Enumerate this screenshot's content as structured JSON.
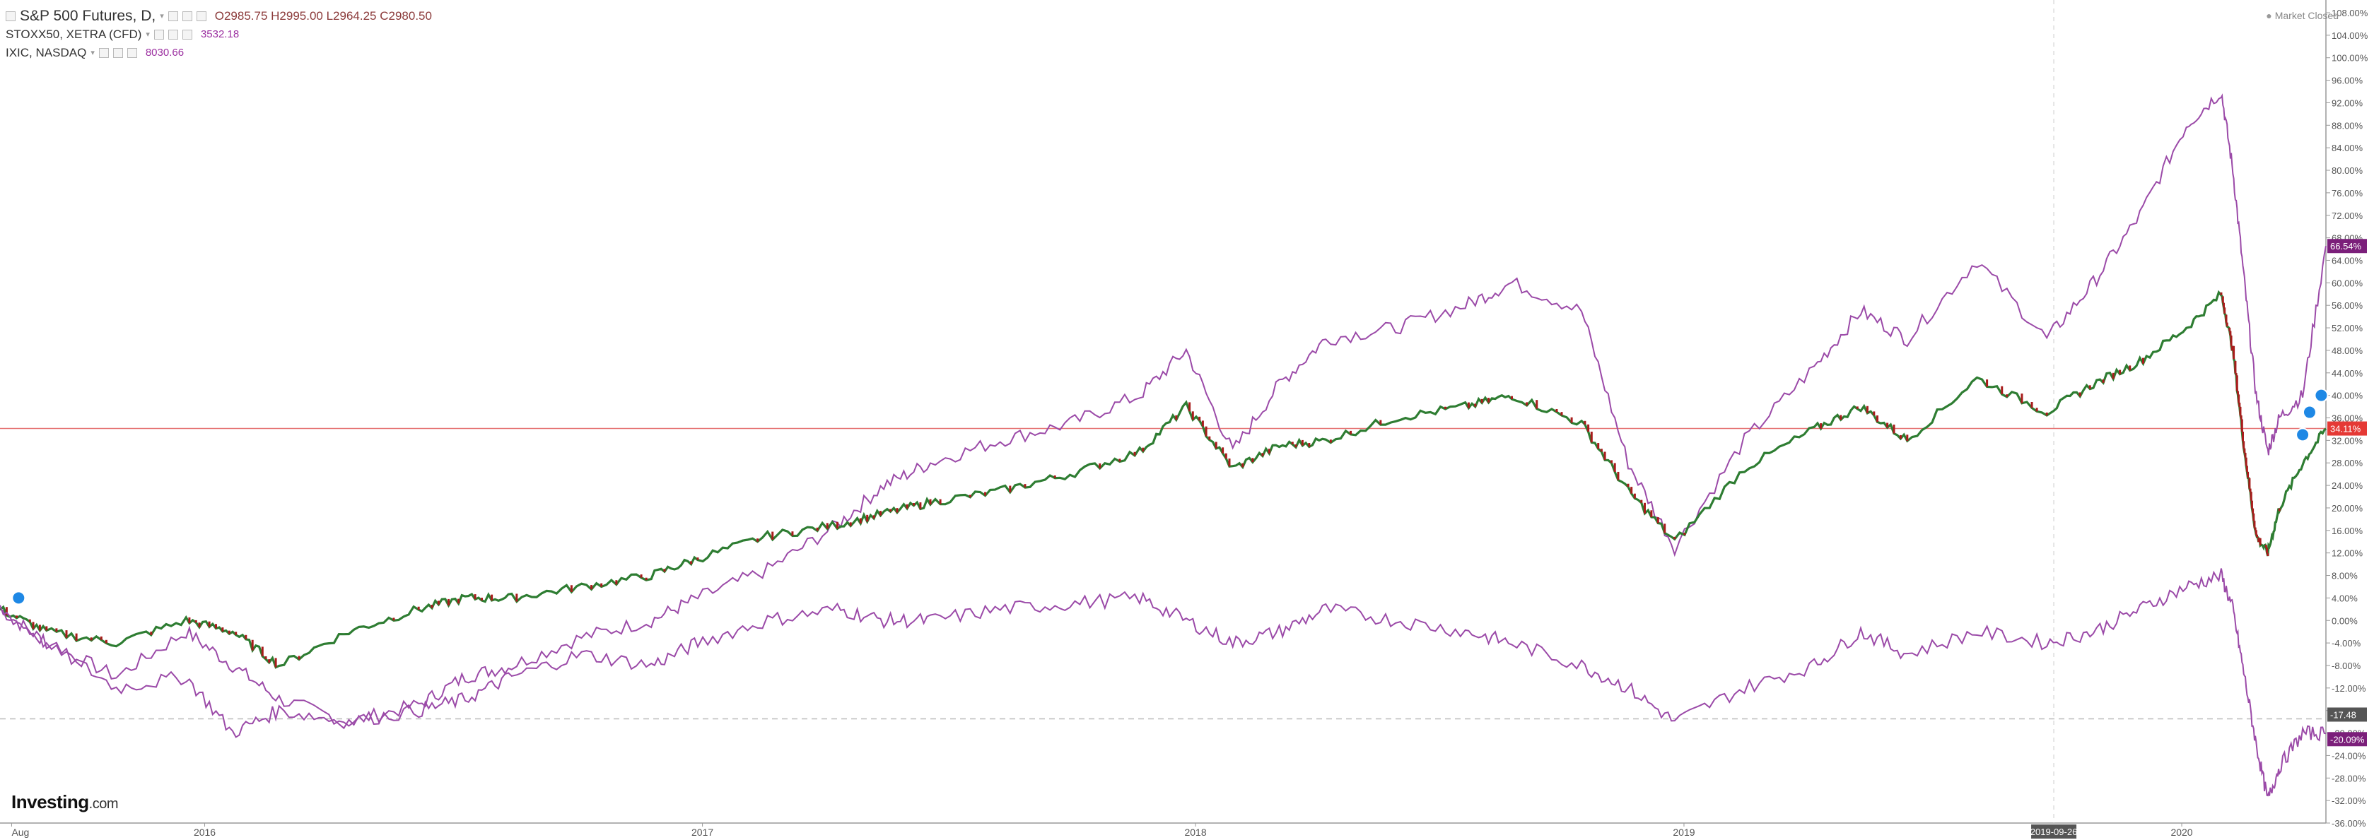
{
  "legend": {
    "main": {
      "title": "S&P 500 Futures, D,",
      "ohlc": "O2985.75  H2995.00  L2964.25  C2980.50"
    },
    "series2": {
      "label": "STOXX50, XETRA (CFD)",
      "value": "3532.18"
    },
    "series3": {
      "label": "IXIC, NASDAQ",
      "value": "8030.66"
    }
  },
  "market_status": "Market Closed",
  "logo": {
    "brand": "Investing",
    "suffix": ".com"
  },
  "colors": {
    "sp500": "#2e7d32",
    "sp500_down": "#a81c1c",
    "stoxx": "#9b4aa8",
    "nasdaq": "#9b4aa8",
    "current_line": "#e57373",
    "axis_text": "#555555"
  },
  "chart_data": {
    "type": "line",
    "x_ticks": [
      "Aug",
      "2016",
      "2017",
      "2018",
      "2019",
      "2019-09-26",
      "2020"
    ],
    "y_ticks": [
      "108.00%",
      "104.00%",
      "100.00%",
      "96.00%",
      "92.00%",
      "88.00%",
      "84.00%",
      "80.00%",
      "76.00%",
      "72.00%",
      "68.00%",
      "64.00%",
      "60.00%",
      "56.00%",
      "52.00%",
      "48.00%",
      "44.00%",
      "40.00%",
      "36.00%",
      "32.00%",
      "28.00%",
      "24.00%",
      "20.00%",
      "16.00%",
      "12.00%",
      "8.00%",
      "4.00%",
      "0.00%",
      "-4.00%",
      "-8.00%",
      "-12.00%",
      "-16.00%",
      "-20.00%",
      "-24.00%",
      "-28.00%",
      "-32.00%",
      "-36.00%"
    ],
    "ylim": [
      -36,
      108
    ],
    "price_labels": {
      "nasdaq": "66.54%",
      "sp500": "34.11%",
      "dashed": "-17.48",
      "stoxx": "-20.09%"
    },
    "series": [
      {
        "name": "IXIC, NASDAQ",
        "x": [
          0,
          0.02,
          0.05,
          0.08,
          0.1,
          0.12,
          0.15,
          0.18,
          0.2,
          0.22,
          0.25,
          0.28,
          0.3,
          0.33,
          0.36,
          0.38,
          0.4,
          0.43,
          0.46,
          0.49,
          0.51,
          0.53,
          0.55,
          0.57,
          0.6,
          0.63,
          0.65,
          0.68,
          0.7,
          0.72,
          0.75,
          0.78,
          0.8,
          0.82,
          0.85,
          0.88,
          0.9,
          0.92,
          0.94,
          0.955,
          0.96,
          0.965,
          0.97,
          0.975,
          0.98,
          0.99,
          1.0
        ],
        "y": [
          2,
          -4,
          -10,
          -2,
          -8,
          -14,
          -18,
          -15,
          -10,
          -8,
          -3,
          0,
          4,
          9,
          17,
          24,
          28,
          32,
          35,
          40,
          48,
          30,
          42,
          50,
          52,
          56,
          60,
          55,
          28,
          13,
          32,
          45,
          55,
          50,
          64,
          50,
          60,
          72,
          88,
          94,
          80,
          60,
          40,
          30,
          36,
          40,
          66.54
        ]
      },
      {
        "name": "S&P 500 Futures",
        "x": [
          0,
          0.02,
          0.05,
          0.08,
          0.1,
          0.12,
          0.15,
          0.18,
          0.2,
          0.22,
          0.25,
          0.28,
          0.3,
          0.33,
          0.36,
          0.38,
          0.4,
          0.43,
          0.46,
          0.49,
          0.51,
          0.53,
          0.55,
          0.57,
          0.6,
          0.63,
          0.65,
          0.68,
          0.7,
          0.72,
          0.75,
          0.78,
          0.8,
          0.82,
          0.85,
          0.88,
          0.9,
          0.92,
          0.94,
          0.955,
          0.96,
          0.965,
          0.97,
          0.975,
          0.98,
          0.99,
          1.0
        ],
        "y": [
          2,
          -2,
          -4,
          0,
          -2,
          -8,
          -2,
          2,
          4,
          4,
          6,
          8,
          11,
          15,
          17,
          19,
          21,
          23,
          26,
          30,
          38,
          27,
          31,
          32,
          36,
          38,
          40,
          35,
          23,
          14,
          27,
          34,
          38,
          32,
          43,
          37,
          42,
          46,
          52,
          58,
          48,
          30,
          15,
          12,
          20,
          28,
          34.11
        ]
      },
      {
        "name": "STOXX50, XETRA (CFD)",
        "x": [
          0,
          0.02,
          0.05,
          0.08,
          0.1,
          0.12,
          0.15,
          0.18,
          0.2,
          0.22,
          0.25,
          0.28,
          0.3,
          0.33,
          0.36,
          0.38,
          0.4,
          0.43,
          0.46,
          0.49,
          0.51,
          0.53,
          0.55,
          0.57,
          0.6,
          0.63,
          0.65,
          0.68,
          0.7,
          0.72,
          0.75,
          0.78,
          0.8,
          0.82,
          0.85,
          0.88,
          0.9,
          0.92,
          0.94,
          0.955,
          0.96,
          0.965,
          0.97,
          0.975,
          0.98,
          0.99,
          1.0
        ],
        "y": [
          2,
          -4,
          -12,
          -10,
          -20,
          -16,
          -18,
          -16,
          -14,
          -10,
          -6,
          -8,
          -4,
          0,
          2,
          0,
          0,
          2,
          3,
          4,
          0,
          -4,
          -2,
          2,
          0,
          -2,
          -4,
          -8,
          -12,
          -18,
          -12,
          -8,
          -2,
          -6,
          -2,
          -4,
          -2,
          2,
          6,
          8,
          2,
          -10,
          -22,
          -32,
          -26,
          -20,
          -20.09
        ]
      }
    ]
  }
}
